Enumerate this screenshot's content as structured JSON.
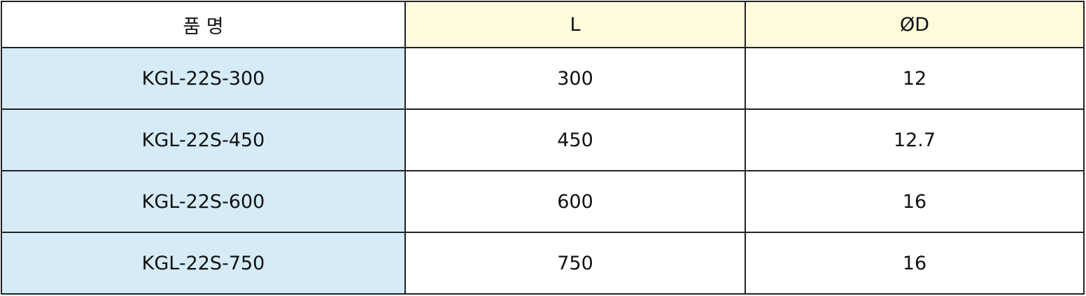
{
  "table": {
    "headers": [
      "품 명",
      "L",
      "ØD"
    ],
    "rows": [
      [
        "KGL-22S-300",
        "300",
        "12"
      ],
      [
        "KGL-22S-450",
        "450",
        "12.7"
      ],
      [
        "KGL-22S-600",
        "600",
        "16"
      ],
      [
        "KGL-22S-750",
        "750",
        "16"
      ]
    ]
  },
  "colors": {
    "header_highlight": "#fffbdc",
    "name_column": "#d5ebf8",
    "border": "#222222"
  }
}
